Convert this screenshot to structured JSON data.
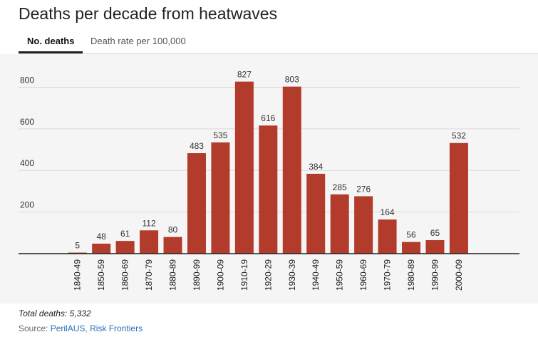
{
  "header": {
    "title": "Deaths per decade from heatwaves"
  },
  "tabs": [
    {
      "label": "No. deaths",
      "active": true
    },
    {
      "label": "Death rate per 100,000",
      "active": false
    }
  ],
  "colors": {
    "bar": "#b23b2b",
    "grid": "#d9d9d9",
    "axis": "#222222",
    "plot_bg": "#f5f5f5"
  },
  "chart_data": {
    "type": "bar",
    "title": "Deaths per decade from heatwaves",
    "xlabel": "",
    "ylabel": "",
    "categories": [
      "1840-49",
      "1850-59",
      "1860-69",
      "1870-79",
      "1880-89",
      "1890-99",
      "1900-09",
      "1910-19",
      "1920-29",
      "1930-39",
      "1940-49",
      "1950-59",
      "1960-69",
      "1970-79",
      "1980-89",
      "1990-99",
      "2000-09"
    ],
    "values": [
      5,
      48,
      61,
      112,
      80,
      483,
      535,
      827,
      616,
      803,
      384,
      285,
      276,
      164,
      56,
      65,
      532
    ],
    "data_labels": [
      "5",
      "48",
      "61",
      "112",
      "80",
      "483",
      "535",
      "827",
      "616",
      "803",
      "384",
      "285",
      "276",
      "164",
      "56",
      "65",
      "532"
    ],
    "yticks": [
      200,
      400,
      600,
      800
    ],
    "ytick_labels": [
      "200",
      "400",
      "600",
      "800"
    ],
    "ylim": [
      0,
      900
    ],
    "grid": true
  },
  "footer": {
    "total_label": "Total deaths: 5,332",
    "source_prefix": "Source: ",
    "source_links": [
      "PerilAUS",
      "Risk Frontiers"
    ],
    "source_sep": ", "
  }
}
